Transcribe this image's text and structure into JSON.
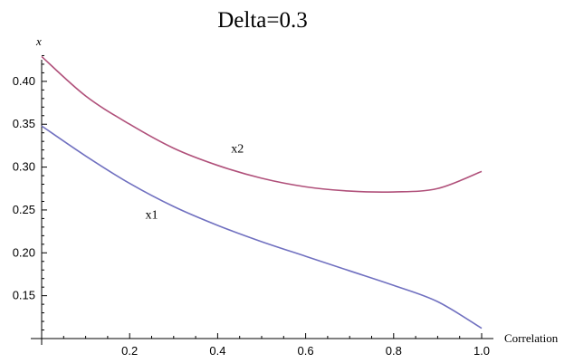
{
  "chart_data": {
    "type": "line",
    "title": "Delta=0.3",
    "xlabel": "Correlation",
    "ylabel": "x",
    "xlim": [
      0.0,
      1.0
    ],
    "ylim": [
      0.1,
      0.44
    ],
    "x_ticks": [
      0.2,
      0.4,
      0.6,
      0.8,
      1.0
    ],
    "x_tick_labels": [
      "0.2",
      "0.4",
      "0.6",
      "0.8",
      "1.0"
    ],
    "y_ticks": [
      0.15,
      0.2,
      0.25,
      0.3,
      0.35,
      0.4
    ],
    "y_tick_labels": [
      "0.15",
      "0.20",
      "0.25",
      "0.30",
      "0.35",
      "0.40"
    ],
    "grid": false,
    "series": [
      {
        "name": "x1",
        "color": "#7070c0",
        "x": [
          0.0,
          0.1,
          0.2,
          0.3,
          0.4,
          0.5,
          0.6,
          0.7,
          0.8,
          0.9,
          1.0
        ],
        "values": [
          0.348,
          0.313,
          0.281,
          0.254,
          0.232,
          0.213,
          0.196,
          0.179,
          0.162,
          0.143,
          0.112
        ]
      },
      {
        "name": "x2",
        "color": "#b0507a",
        "x": [
          0.0,
          0.1,
          0.2,
          0.3,
          0.4,
          0.5,
          0.6,
          0.7,
          0.8,
          0.9,
          1.0
        ],
        "values": [
          0.429,
          0.383,
          0.35,
          0.322,
          0.302,
          0.287,
          0.277,
          0.272,
          0.271,
          0.275,
          0.295
        ]
      }
    ],
    "annotations": [
      {
        "text": "x1",
        "x": 0.25,
        "y": 0.24
      },
      {
        "text": "x2",
        "x": 0.445,
        "y": 0.317
      }
    ]
  }
}
